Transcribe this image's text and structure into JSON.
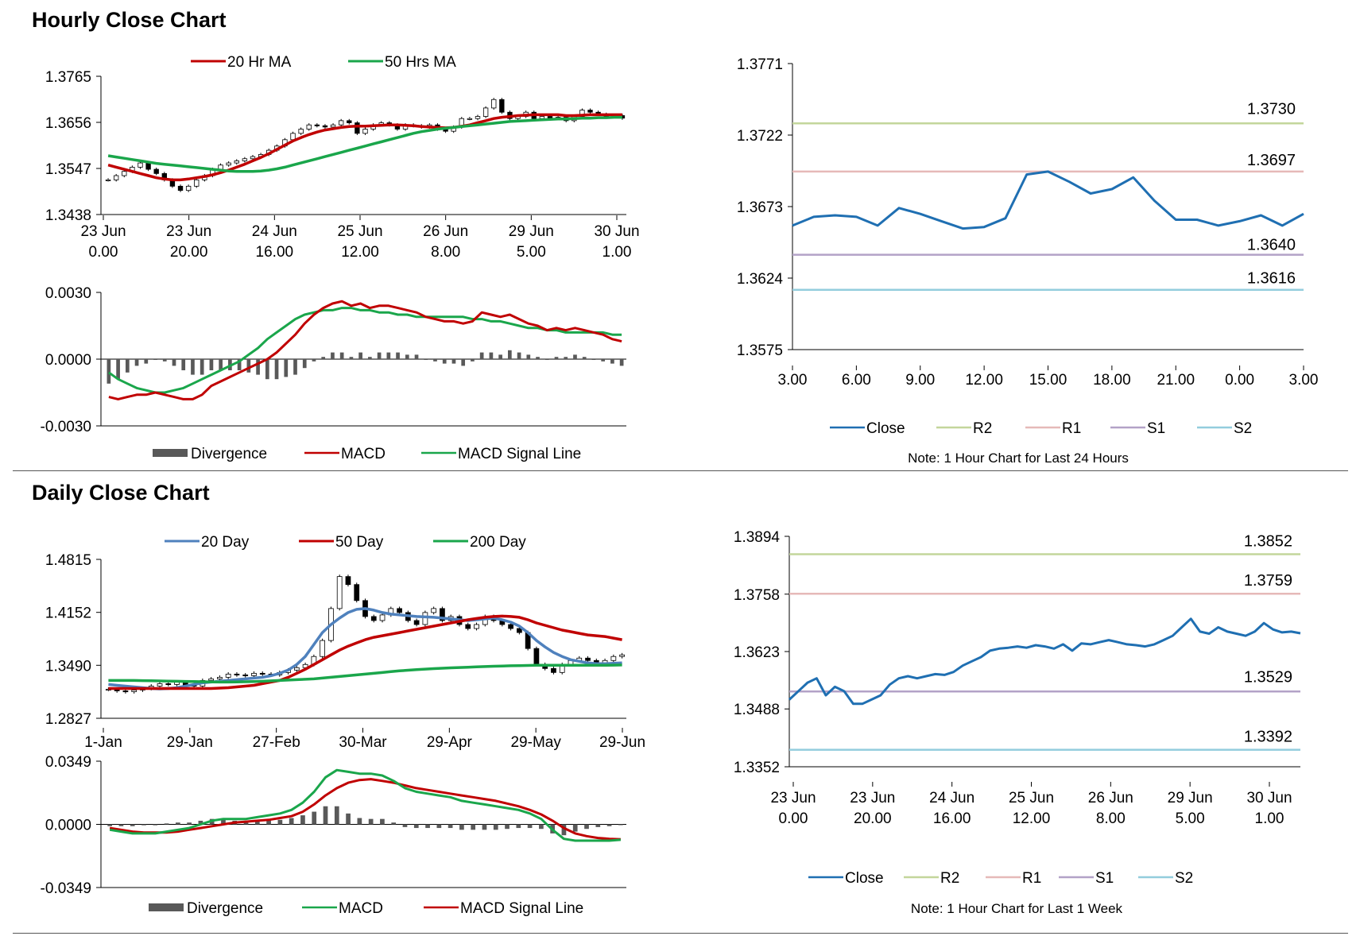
{
  "sections": {
    "hourly_title": "Hourly Close Chart",
    "daily_title": "Daily Close Chart"
  },
  "colors": {
    "red": "#c00000",
    "green": "#1aa64b",
    "blue": "#4f81bd",
    "close_blue": "#1f6fb2",
    "r2": "#c3d69b",
    "r1": "#e6b9b8",
    "s1": "#b3a2c7",
    "s2": "#93cddd",
    "hist": "#595959"
  },
  "chart_data": [
    {
      "id": "hourly_price",
      "type": "candlestick",
      "legend": [
        "20 Hr MA",
        "50 Hrs MA"
      ],
      "yticks": [
        "1.3765",
        "1.3656",
        "1.3547",
        "1.3438"
      ],
      "ylim": [
        1.3438,
        1.3765
      ],
      "xticks": [
        [
          "23 Jun",
          "0.00"
        ],
        [
          "23 Jun",
          "20.00"
        ],
        [
          "24 Jun",
          "16.00"
        ],
        [
          "25 Jun",
          "12.00"
        ],
        [
          "26 Jun",
          "8.00"
        ],
        [
          "29 Jun",
          "5.00"
        ],
        [
          "30 Jun",
          "1.00"
        ]
      ],
      "close": [
        1.352,
        1.353,
        1.354,
        1.355,
        1.356,
        1.3545,
        1.3535,
        1.352,
        1.3505,
        1.3495,
        1.3505,
        1.352,
        1.353,
        1.3545,
        1.3555,
        1.356,
        1.3565,
        1.357,
        1.3575,
        1.358,
        1.359,
        1.36,
        1.3615,
        1.363,
        1.364,
        1.365,
        1.3648,
        1.3645,
        1.365,
        1.366,
        1.3655,
        1.363,
        1.364,
        1.365,
        1.3655,
        1.365,
        1.364,
        1.365,
        1.3648,
        1.3645,
        1.365,
        1.364,
        1.3635,
        1.3645,
        1.3665,
        1.3665,
        1.367,
        1.369,
        1.371,
        1.368,
        1.3665,
        1.367,
        1.368,
        1.3665,
        1.367,
        1.3665,
        1.3668,
        1.366,
        1.367,
        1.3685,
        1.368,
        1.3675,
        1.367,
        1.3672,
        1.3666
      ],
      "ma20": [
        1.3555,
        1.355,
        1.3545,
        1.354,
        1.3535,
        1.353,
        1.3525,
        1.3522,
        1.352,
        1.352,
        1.3522,
        1.3525,
        1.3528,
        1.3532,
        1.3537,
        1.3543,
        1.355,
        1.3557,
        1.3565,
        1.3573,
        1.3582,
        1.3592,
        1.3602,
        1.3612,
        1.362,
        1.3627,
        1.3633,
        1.3638,
        1.3641,
        1.3644,
        1.3646,
        1.3647,
        1.3647,
        1.3648,
        1.3649,
        1.365,
        1.365,
        1.3649,
        1.3648,
        1.3646,
        1.3645,
        1.3644,
        1.3643,
        1.3644,
        1.3647,
        1.365,
        1.3655,
        1.366,
        1.3665,
        1.3668,
        1.367,
        1.3672,
        1.3673,
        1.3674,
        1.3674,
        1.3674,
        1.3674,
        1.3672,
        1.3672,
        1.3673,
        1.3674,
        1.3674,
        1.3674,
        1.3674,
        1.3674
      ],
      "ma50": [
        1.3577,
        1.3574,
        1.3571,
        1.3568,
        1.3565,
        1.3562,
        1.3559,
        1.3557,
        1.3555,
        1.3553,
        1.3551,
        1.3549,
        1.3547,
        1.3545,
        1.3543,
        1.3541,
        1.354,
        1.354,
        1.354,
        1.3541,
        1.3543,
        1.3546,
        1.355,
        1.3555,
        1.356,
        1.3565,
        1.357,
        1.3575,
        1.358,
        1.3585,
        1.359,
        1.3595,
        1.36,
        1.3605,
        1.361,
        1.3615,
        1.362,
        1.3625,
        1.363,
        1.3634,
        1.3637,
        1.364,
        1.3642,
        1.3644,
        1.3646,
        1.3648,
        1.365,
        1.3652,
        1.3654,
        1.3656,
        1.3658,
        1.3659,
        1.366,
        1.3661,
        1.3662,
        1.3663,
        1.3664,
        1.3664,
        1.3665,
        1.3666,
        1.3666,
        1.3667,
        1.3667,
        1.3668,
        1.3668
      ]
    },
    {
      "id": "hourly_macd",
      "type": "line_histogram",
      "legend": [
        "Divergence",
        "MACD",
        "MACD Signal Line"
      ],
      "yticks": [
        "0.0030",
        "0.0000",
        "-0.0030"
      ],
      "ylim": [
        -0.003,
        0.003
      ],
      "macd": [
        -0.0017,
        -0.0018,
        -0.0017,
        -0.0016,
        -0.0016,
        -0.0015,
        -0.0016,
        -0.0017,
        -0.0018,
        -0.0018,
        -0.0016,
        -0.0012,
        -0.001,
        -0.0008,
        -0.0006,
        -0.0004,
        -0.0002,
        0.0,
        0.0003,
        0.0007,
        0.0011,
        0.0016,
        0.002,
        0.0023,
        0.0025,
        0.0026,
        0.0024,
        0.0025,
        0.0023,
        0.0024,
        0.0024,
        0.0023,
        0.0022,
        0.0021,
        0.0019,
        0.0018,
        0.0017,
        0.0017,
        0.0016,
        0.0017,
        0.0021,
        0.002,
        0.0019,
        0.002,
        0.0018,
        0.0016,
        0.0015,
        0.0013,
        0.0014,
        0.0013,
        0.0014,
        0.0013,
        0.0012,
        0.0011,
        0.0009,
        0.0008
      ],
      "signal": [
        -0.0006,
        -0.0009,
        -0.0011,
        -0.0013,
        -0.0014,
        -0.0015,
        -0.0015,
        -0.0014,
        -0.0013,
        -0.0011,
        -0.0009,
        -0.0007,
        -0.0005,
        -0.0003,
        -0.0001,
        0.0002,
        0.0005,
        0.0009,
        0.0012,
        0.0015,
        0.0018,
        0.002,
        0.0021,
        0.0022,
        0.0022,
        0.0023,
        0.0023,
        0.0022,
        0.0022,
        0.0021,
        0.0021,
        0.002,
        0.002,
        0.0019,
        0.0019,
        0.0019,
        0.0019,
        0.0019,
        0.0019,
        0.0018,
        0.0018,
        0.0017,
        0.0017,
        0.0016,
        0.0015,
        0.0014,
        0.0014,
        0.0013,
        0.0013,
        0.0012,
        0.0012,
        0.0012,
        0.0012,
        0.0012,
        0.0011,
        0.0011
      ],
      "divergence": [
        -0.0011,
        -0.0009,
        -0.0006,
        -0.0003,
        -0.0002,
        0.0,
        -0.0001,
        -0.0003,
        -0.0005,
        -0.0007,
        -0.0007,
        -0.0005,
        -0.0005,
        -0.0005,
        -0.0005,
        -0.0006,
        -0.0007,
        -0.0009,
        -0.0009,
        -0.0008,
        -0.0007,
        -0.0004,
        -0.0001,
        0.0001,
        0.0003,
        0.0003,
        0.0001,
        0.0003,
        0.0001,
        0.0003,
        0.0003,
        0.0003,
        0.0002,
        0.0002,
        0.0,
        -0.0001,
        -0.0002,
        -0.0002,
        -0.0003,
        -0.0001,
        0.0003,
        0.0003,
        0.0002,
        0.0004,
        0.0003,
        0.0002,
        0.0001,
        0.0,
        0.0001,
        0.0001,
        0.0002,
        0.0001,
        0.0,
        -0.0001,
        -0.0002,
        -0.0003
      ]
    },
    {
      "id": "last24h_close",
      "type": "line",
      "legend": [
        "Close",
        "R2",
        "R1",
        "S1",
        "S2"
      ],
      "yticks": [
        "1.3771",
        "1.3722",
        "1.3673",
        "1.3624",
        "1.3575"
      ],
      "ylim": [
        1.3575,
        1.3771
      ],
      "xticks": [
        "3.00",
        "6.00",
        "9.00",
        "12.00",
        "15.00",
        "18.00",
        "21.00",
        "0.00",
        "3.00"
      ],
      "close": [
        1.366,
        1.3666,
        1.3667,
        1.3666,
        1.366,
        1.3672,
        1.3668,
        1.3663,
        1.3658,
        1.3659,
        1.3665,
        1.3695,
        1.3697,
        1.369,
        1.3682,
        1.3685,
        1.3693,
        1.3677,
        1.3664,
        1.3664,
        1.366,
        1.3663,
        1.3667,
        1.366,
        1.3668
      ],
      "levels": {
        "R2": 1.373,
        "R1": 1.3697,
        "S1": 1.364,
        "S2": 1.3616
      },
      "level_labels": [
        "1.3730",
        "1.3697",
        "1.3640",
        "1.3616"
      ],
      "note": "Note: 1 Hour Chart for Last 24 Hours"
    },
    {
      "id": "daily_price",
      "type": "candlestick",
      "legend": [
        "20 Day",
        "50 Day",
        "200 Day"
      ],
      "yticks": [
        "1.4815",
        "1.4152",
        "1.3490",
        "1.2827"
      ],
      "ylim": [
        1.2827,
        1.4815
      ],
      "xticks": [
        "1-Jan",
        "29-Jan",
        "27-Feb",
        "30-Mar",
        "29-Apr",
        "29-May",
        "29-Jun"
      ],
      "close": [
        1.319,
        1.317,
        1.316,
        1.318,
        1.32,
        1.323,
        1.326,
        1.325,
        1.328,
        1.324,
        1.323,
        1.33,
        1.332,
        1.334,
        1.338,
        1.337,
        1.336,
        1.339,
        1.338,
        1.337,
        1.34,
        1.343,
        1.346,
        1.35,
        1.36,
        1.38,
        1.42,
        1.46,
        1.45,
        1.43,
        1.41,
        1.405,
        1.412,
        1.42,
        1.415,
        1.405,
        1.4,
        1.415,
        1.42,
        1.405,
        1.41,
        1.4,
        1.395,
        1.4,
        1.41,
        1.405,
        1.4,
        1.395,
        1.39,
        1.37,
        1.35,
        1.345,
        1.34,
        1.35,
        1.355,
        1.358,
        1.355,
        1.352,
        1.355,
        1.36,
        1.362
      ],
      "ma20": [
        1.325,
        1.324,
        1.323,
        1.322,
        1.321,
        1.32,
        1.3195,
        1.32,
        1.321,
        1.323,
        1.325,
        1.327,
        1.328,
        1.329,
        1.33,
        1.331,
        1.332,
        1.333,
        1.334,
        1.336,
        1.339,
        1.343,
        1.35,
        1.36,
        1.375,
        1.39,
        1.4,
        1.408,
        1.415,
        1.419,
        1.42,
        1.418,
        1.415,
        1.413,
        1.412,
        1.411,
        1.41,
        1.4095,
        1.409,
        1.408,
        1.407,
        1.406,
        1.405,
        1.406,
        1.407,
        1.408,
        1.406,
        1.403,
        1.398,
        1.39,
        1.38,
        1.372,
        1.365,
        1.36,
        1.356,
        1.354,
        1.352,
        1.351,
        1.351,
        1.3515,
        1.352
      ],
      "ma50": [
        1.32,
        1.32,
        1.32,
        1.32,
        1.32,
        1.32,
        1.32,
        1.32,
        1.32,
        1.32,
        1.32,
        1.32,
        1.32,
        1.3205,
        1.321,
        1.322,
        1.323,
        1.324,
        1.326,
        1.328,
        1.33,
        1.334,
        1.339,
        1.344,
        1.35,
        1.356,
        1.362,
        1.368,
        1.373,
        1.377,
        1.381,
        1.384,
        1.386,
        1.388,
        1.39,
        1.392,
        1.394,
        1.396,
        1.398,
        1.4,
        1.402,
        1.404,
        1.406,
        1.4075,
        1.409,
        1.41,
        1.4105,
        1.41,
        1.409,
        1.406,
        1.402,
        1.399,
        1.396,
        1.393,
        1.391,
        1.389,
        1.387,
        1.386,
        1.385,
        1.383,
        1.381
      ],
      "ma200": [
        1.33,
        1.33,
        1.33,
        1.33,
        1.3298,
        1.3296,
        1.3294,
        1.3292,
        1.329,
        1.3288,
        1.3286,
        1.3284,
        1.3282,
        1.328,
        1.328,
        1.3282,
        1.3284,
        1.3286,
        1.329,
        1.3295,
        1.33,
        1.3305,
        1.331,
        1.3315,
        1.332,
        1.333,
        1.334,
        1.335,
        1.336,
        1.337,
        1.338,
        1.339,
        1.34,
        1.341,
        1.342,
        1.3428,
        1.3435,
        1.3442,
        1.3448,
        1.3453,
        1.3458,
        1.3462,
        1.3466,
        1.347,
        1.3474,
        1.3478,
        1.3481,
        1.3484,
        1.3486,
        1.3488,
        1.349,
        1.349,
        1.349,
        1.349,
        1.349,
        1.349,
        1.349,
        1.349,
        1.349,
        1.3492,
        1.3494
      ]
    },
    {
      "id": "daily_macd",
      "type": "line_histogram",
      "legend": [
        "Divergence",
        "MACD",
        "MACD Signal Line"
      ],
      "yticks": [
        "0.0349",
        "0.0000",
        "-0.0349"
      ],
      "ylim": [
        -0.0349,
        0.0349
      ],
      "macd": [
        -0.003,
        -0.004,
        -0.005,
        -0.005,
        -0.005,
        -0.004,
        -0.003,
        -0.002,
        0.0,
        0.002,
        0.003,
        0.003,
        0.003,
        0.004,
        0.005,
        0.006,
        0.008,
        0.012,
        0.018,
        0.026,
        0.03,
        0.029,
        0.028,
        0.028,
        0.027,
        0.024,
        0.02,
        0.018,
        0.017,
        0.016,
        0.015,
        0.013,
        0.012,
        0.011,
        0.01,
        0.009,
        0.008,
        0.006,
        0.003,
        -0.003,
        -0.008,
        -0.009,
        -0.009,
        -0.009,
        -0.009,
        -0.0085
      ],
      "signal": [
        -0.002,
        -0.003,
        -0.004,
        -0.0045,
        -0.0045,
        -0.0045,
        -0.004,
        -0.003,
        -0.002,
        -0.001,
        0.0,
        0.001,
        0.0015,
        0.002,
        0.0025,
        0.0035,
        0.0045,
        0.007,
        0.011,
        0.016,
        0.02,
        0.023,
        0.0245,
        0.025,
        0.024,
        0.023,
        0.0215,
        0.02,
        0.019,
        0.018,
        0.017,
        0.016,
        0.015,
        0.014,
        0.013,
        0.0115,
        0.01,
        0.008,
        0.0055,
        0.002,
        -0.002,
        -0.005,
        -0.0065,
        -0.0075,
        -0.008,
        -0.0082
      ],
      "divergence": [
        -0.001,
        -0.001,
        -0.001,
        -0.0005,
        -0.0005,
        0.0005,
        0.001,
        0.001,
        0.002,
        0.003,
        0.003,
        0.002,
        0.0015,
        0.002,
        0.0025,
        0.0025,
        0.0035,
        0.005,
        0.007,
        0.01,
        0.01,
        0.006,
        0.0035,
        0.003,
        0.003,
        0.001,
        -0.0015,
        -0.002,
        -0.002,
        -0.002,
        -0.002,
        -0.003,
        -0.003,
        -0.003,
        -0.003,
        -0.0025,
        -0.002,
        -0.002,
        -0.0025,
        -0.005,
        -0.006,
        -0.004,
        -0.0025,
        -0.0015,
        -0.001,
        -0.0003
      ]
    },
    {
      "id": "week_close",
      "type": "line",
      "legend": [
        "Close",
        "R2",
        "R1",
        "S1",
        "S2"
      ],
      "yticks": [
        "1.3894",
        "1.3758",
        "1.3623",
        "1.3488",
        "1.3352"
      ],
      "ylim": [
        1.3352,
        1.3894
      ],
      "xticks": [
        [
          "23 Jun",
          "0.00"
        ],
        [
          "23 Jun",
          "20.00"
        ],
        [
          "24 Jun",
          "16.00"
        ],
        [
          "25 Jun",
          "12.00"
        ],
        [
          "26 Jun",
          "8.00"
        ],
        [
          "29 Jun",
          "5.00"
        ],
        [
          "30 Jun",
          "1.00"
        ]
      ],
      "close": [
        1.351,
        1.353,
        1.355,
        1.356,
        1.352,
        1.354,
        1.353,
        1.35,
        1.35,
        1.351,
        1.352,
        1.3545,
        1.356,
        1.3565,
        1.356,
        1.3565,
        1.357,
        1.3568,
        1.3575,
        1.359,
        1.36,
        1.361,
        1.3625,
        1.363,
        1.3632,
        1.3635,
        1.3632,
        1.3638,
        1.3635,
        1.363,
        1.364,
        1.3625,
        1.3642,
        1.364,
        1.3645,
        1.365,
        1.3645,
        1.364,
        1.3638,
        1.3635,
        1.364,
        1.365,
        1.366,
        1.368,
        1.37,
        1.367,
        1.3665,
        1.368,
        1.367,
        1.3665,
        1.366,
        1.367,
        1.369,
        1.3675,
        1.3668,
        1.367,
        1.3666
      ],
      "levels": {
        "R2": 1.3852,
        "R1": 1.3759,
        "S1": 1.3529,
        "S2": 1.3392
      },
      "level_labels": [
        "1.3852",
        "1.3759",
        "1.3529",
        "1.3392"
      ],
      "note": "Note: 1 Hour Chart for  Last 1 Week"
    }
  ]
}
